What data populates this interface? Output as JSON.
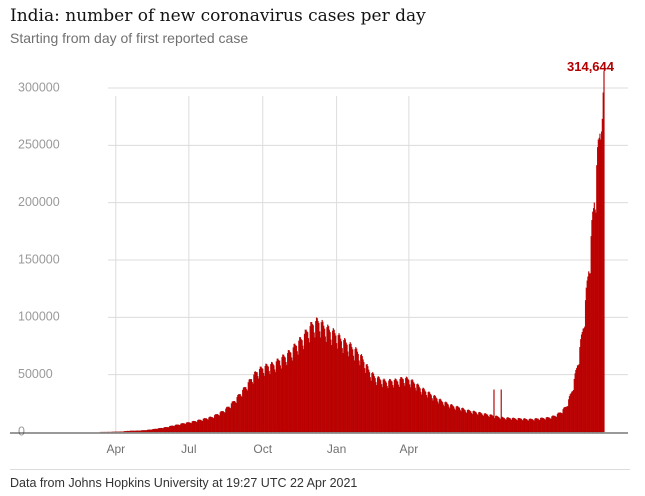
{
  "title": "India: number of new coronavirus cases per day",
  "subtitle": "Starting from day of first reported case",
  "source": "Data from Johns Hopkins University at 19:27 UTC 22 Apr 2021",
  "colors": {
    "bar": "#c70000",
    "bar_stroke": "#8a0000",
    "grid": "#dcdcdc",
    "axis": "#333333",
    "callout": "#b00000"
  },
  "chart_data": {
    "type": "bar",
    "title": "India: number of new coronavirus cases per day",
    "subtitle": "Starting from day of first reported case",
    "xlabel": "",
    "ylabel": "",
    "ylim": [
      0,
      300000
    ],
    "yticks": [
      0,
      50000,
      100000,
      150000,
      200000,
      250000,
      300000
    ],
    "ytick_labels": [
      "0",
      "50000",
      "100000",
      "150000",
      "200000",
      "250000",
      "300000"
    ],
    "xticks": [
      "Apr",
      "Jul",
      "Oct",
      "Jan",
      "Apr"
    ],
    "grid": true,
    "start_date": "2020-01-30",
    "end_date": "2021-04-22",
    "series": [
      {
        "values_weekly": [
          0,
          0,
          0,
          0,
          0,
          0,
          0,
          10,
          40,
          100,
          330,
          900,
          1000,
          1200,
          1400,
          2000,
          2700,
          3500,
          4200,
          5500,
          6400,
          7500,
          8300,
          9500,
          10500,
          11800,
          13000,
          15500,
          18000,
          22000,
          27000,
          33000,
          39000,
          46000,
          52000,
          55000,
          57000,
          58000,
          62000,
          65000,
          69000,
          75000,
          80000,
          87000,
          93000,
          95000,
          90000,
          87000,
          84000,
          79000,
          76000,
          72000,
          68000,
          61000,
          52000,
          47000,
          45000,
          43000,
          44000,
          44000,
          46000,
          45000,
          42000,
          38000,
          35000,
          32000,
          29000,
          26000,
          24000,
          22000,
          21000,
          19000,
          18000,
          17000,
          16000,
          15000,
          14000,
          13000,
          12000,
          12000,
          11500,
          11500,
          11000,
          11000,
          11500,
          12000,
          12500,
          14000,
          17000,
          22000,
          35000,
          58000,
          90000,
          140000,
          200000,
          260000
        ]
      }
    ],
    "annotations": [
      {
        "text": "314,644",
        "value": 314644,
        "position": "last bar"
      }
    ]
  }
}
